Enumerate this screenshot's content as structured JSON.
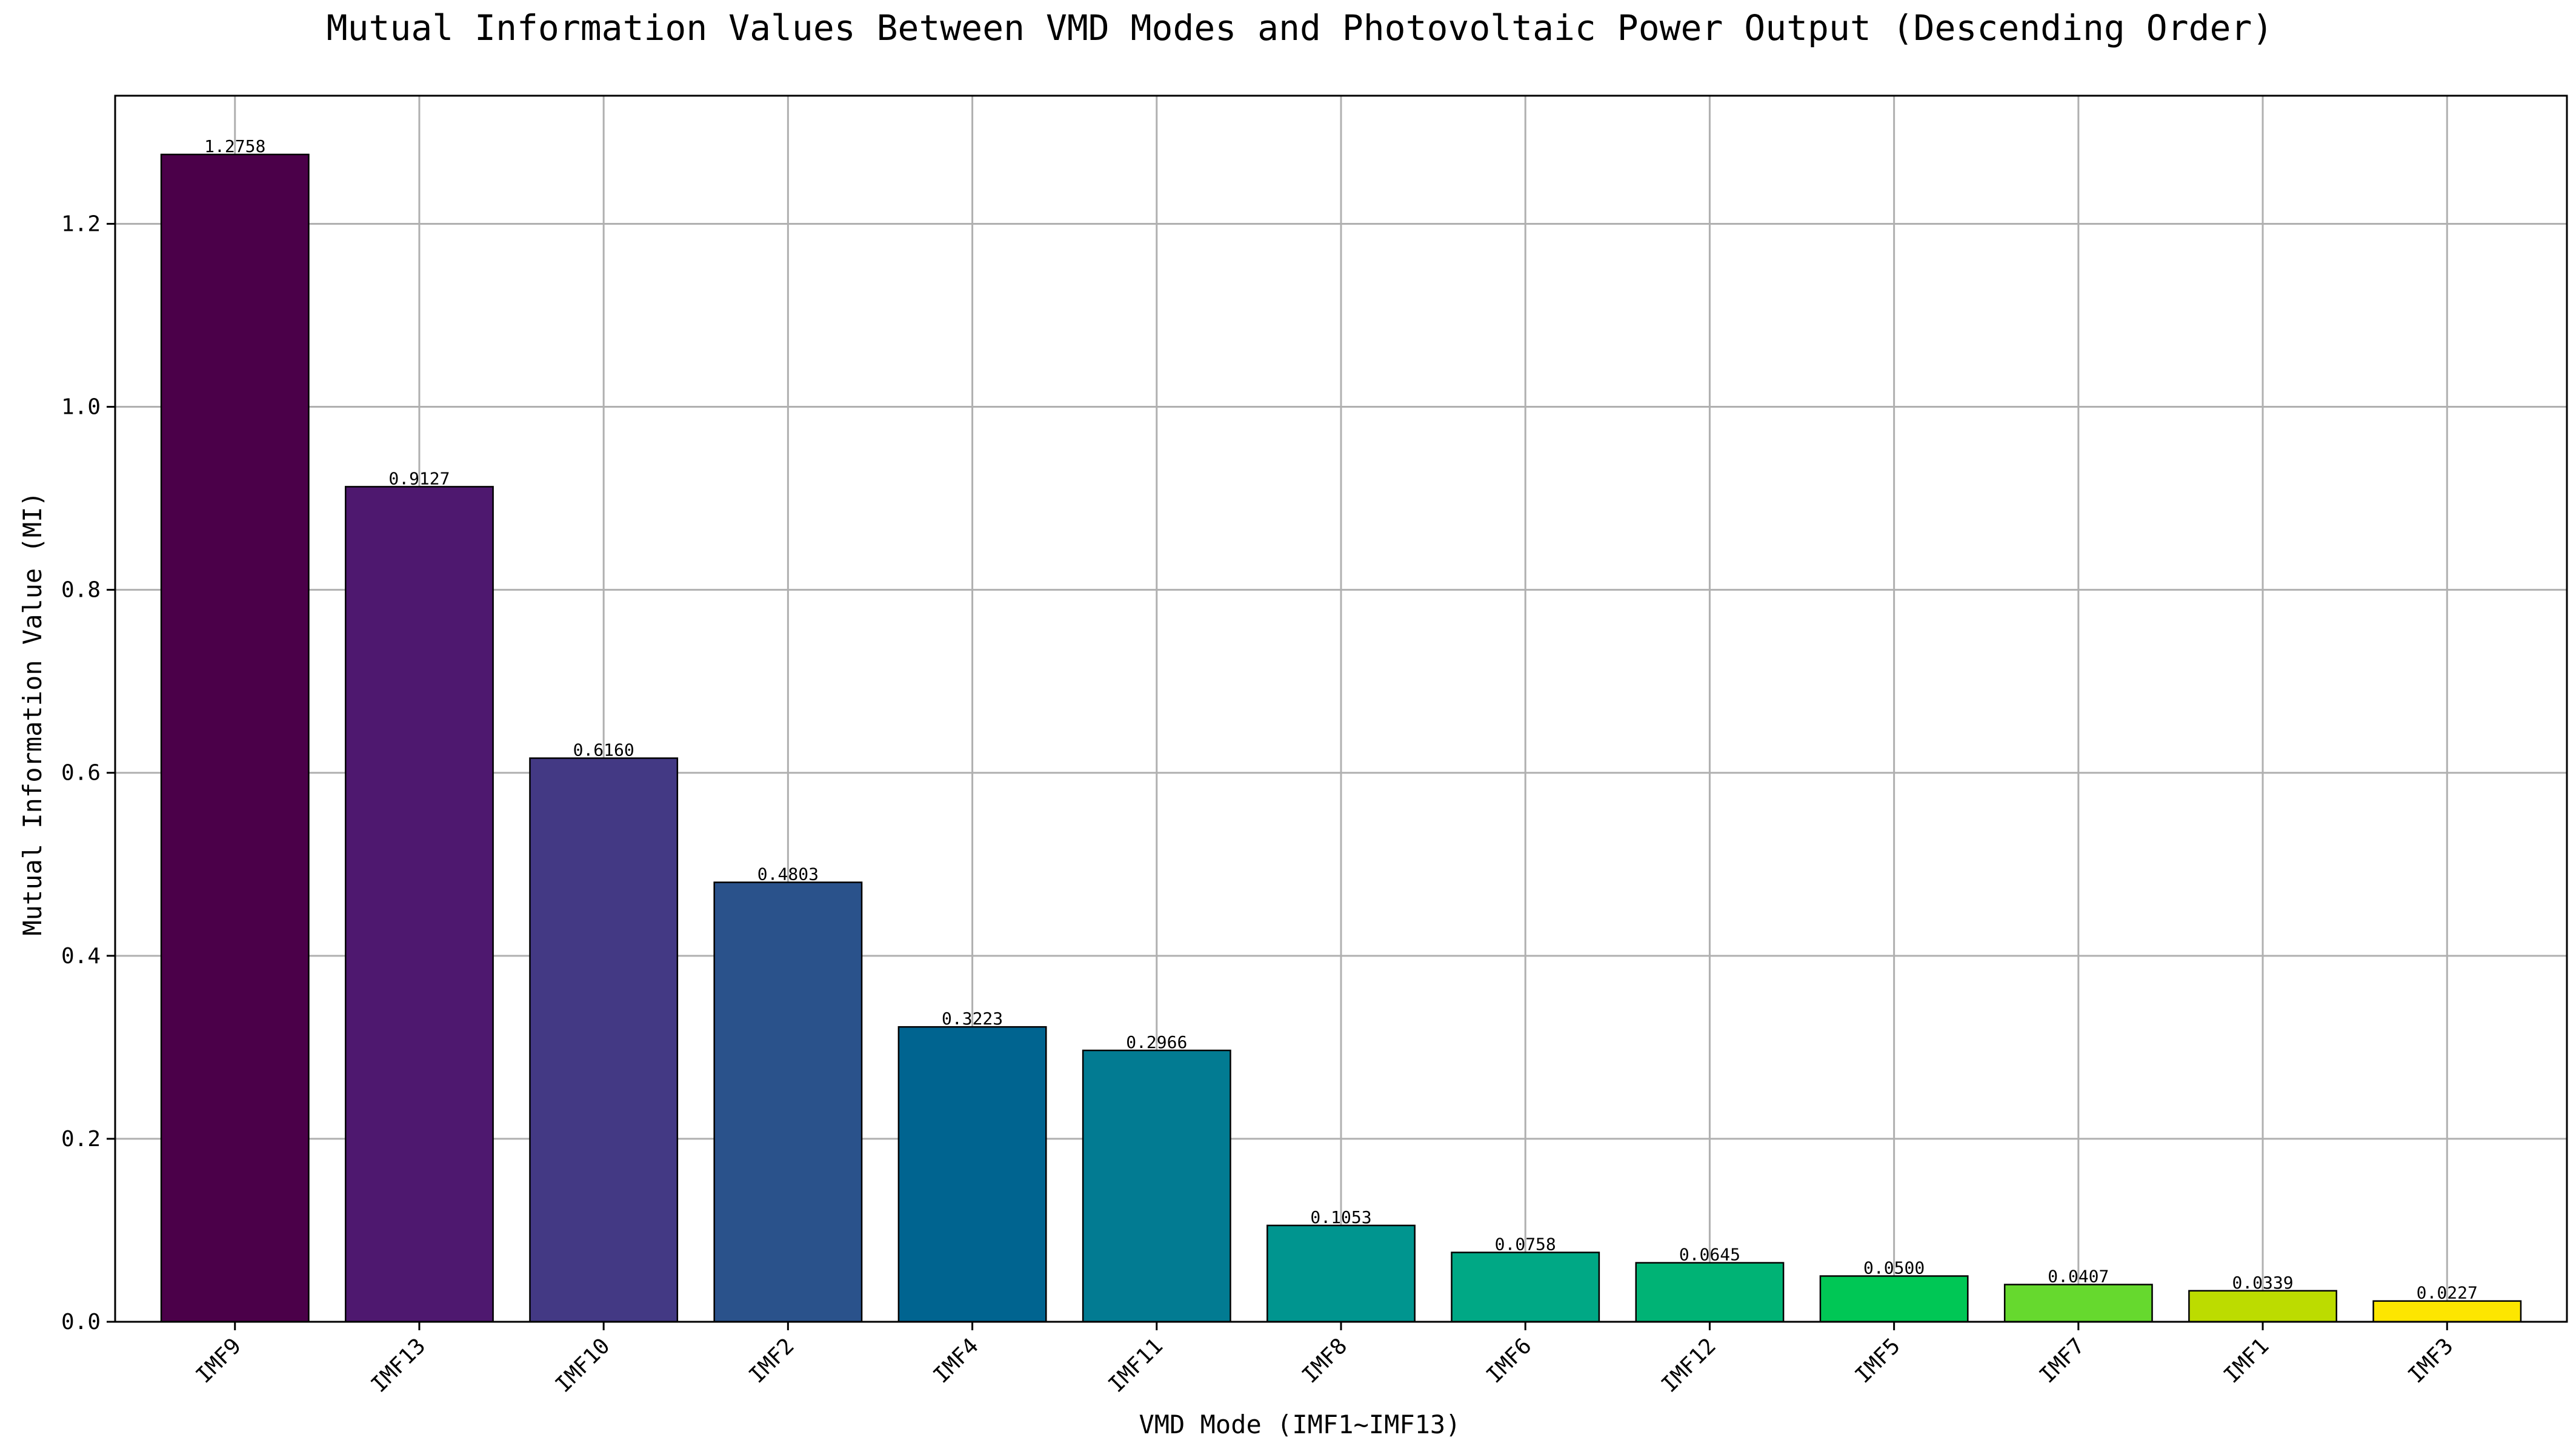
{
  "chart_data": {
    "type": "bar",
    "title": "Mutual Information Values Between VMD Modes and Photovoltaic Power Output (Descending Order)",
    "xlabel": "VMD Mode (IMF1~IMF13)",
    "ylabel": "Mutual Information Value (MI)",
    "categories": [
      "IMF9",
      "IMF13",
      "IMF10",
      "IMF2",
      "IMF4",
      "IMF11",
      "IMF8",
      "IMF6",
      "IMF12",
      "IMF5",
      "IMF7",
      "IMF1",
      "IMF3"
    ],
    "values": [
      1.2758,
      0.9127,
      0.616,
      0.4803,
      0.3223,
      0.2966,
      0.1053,
      0.0758,
      0.0645,
      0.05,
      0.0407,
      0.0339,
      0.0227
    ],
    "value_labels": [
      "1.2758",
      "0.9127",
      "0.6160",
      "0.4803",
      "0.3223",
      "0.2966",
      "0.1053",
      "0.0758",
      "0.0645",
      "0.0500",
      "0.0407",
      "0.0339",
      "0.0227"
    ],
    "ylim": [
      0,
      1.34
    ],
    "yticks": [
      0.0,
      0.2,
      0.4,
      0.6,
      0.8,
      1.0,
      1.2
    ],
    "ytick_labels": [
      "0.0",
      "0.2",
      "0.4",
      "0.6",
      "0.8",
      "1.0",
      "1.2"
    ],
    "grid": true,
    "bar_colors": [
      "#4b0049",
      "#4e186f",
      "#433984",
      "#2a528b",
      "#006490",
      "#027b92",
      "#00958f",
      "#00a885",
      "#00b375",
      "#00c755",
      "#66d92e",
      "#bcdc00",
      "#fde600"
    ],
    "edge_color": "#000000",
    "grid_color": "#b0b0b0"
  }
}
